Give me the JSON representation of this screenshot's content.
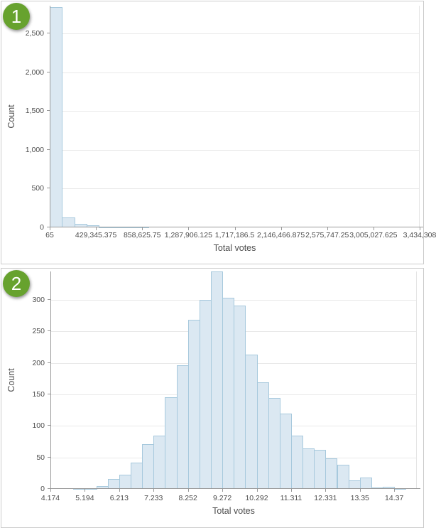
{
  "panels": [
    {
      "step_number": "1"
    },
    {
      "step_number": "2"
    }
  ],
  "colors": {
    "badge_green": "#67a22e",
    "bar_fill": "#dbe8f2",
    "bar_border": "#a7c9dd",
    "axis_line": "#999999",
    "gridline": "#e9e9e9",
    "tick_text": "#4d4d4d",
    "panel_border": "#cccccc"
  },
  "chart_data": [
    {
      "type": "bar",
      "subtype": "histogram",
      "title": "",
      "xlabel": "Total votes",
      "ylabel": "Count",
      "legend": "none",
      "grid": "horizontal",
      "bin_start": 65,
      "bin_width": 114474.77,
      "n_bins": 30,
      "values": [
        2842,
        128,
        49,
        25,
        7,
        2,
        3,
        1,
        0,
        0,
        0,
        0,
        0,
        0,
        0,
        0,
        0,
        0,
        0,
        0,
        0,
        0,
        0,
        0,
        0,
        0,
        0,
        0,
        0,
        0
      ],
      "x_tick_labels": [
        "65",
        "429,345.375",
        "858,625.75",
        "1,287,906.125",
        "1,717,186.5",
        "2,146,466.875",
        "2,575,747.25",
        "3,005,027.625",
        "3,434,308"
      ],
      "y_tick_labels": [
        "0",
        "500",
        "1,000",
        "1,500",
        "2,000",
        "2,500"
      ],
      "y_tick_values": [
        0,
        500,
        1000,
        1500,
        2000,
        2500
      ],
      "ylim": [
        0,
        2860
      ],
      "xlim": [
        65,
        3434308
      ]
    },
    {
      "type": "bar",
      "subtype": "histogram",
      "title": "",
      "xlabel": "Total votes",
      "ylabel": "Count",
      "legend": "none",
      "grid": "horizontal",
      "bin_start": 4.174,
      "bin_width": 0.33987,
      "n_bins": 31,
      "values": [
        0,
        0,
        1,
        1,
        4,
        16,
        23,
        42,
        71,
        85,
        146,
        196,
        268,
        300,
        345,
        303,
        291,
        213,
        169,
        144,
        119,
        85,
        64,
        62,
        48,
        38,
        13,
        18,
        2,
        3,
        1
      ],
      "x_tick_labels": [
        "4.174",
        "5.194",
        "6.213",
        "7.233",
        "8.252",
        "9.272",
        "10.292",
        "11.311",
        "12.331",
        "13.35",
        "14.37"
      ],
      "y_tick_labels": [
        "0",
        "50",
        "100",
        "150",
        "200",
        "250",
        "300"
      ],
      "y_tick_values": [
        0,
        50,
        100,
        150,
        200,
        250,
        300
      ],
      "ylim": [
        0,
        345
      ],
      "xlim": [
        4.174,
        14.71
      ]
    }
  ]
}
